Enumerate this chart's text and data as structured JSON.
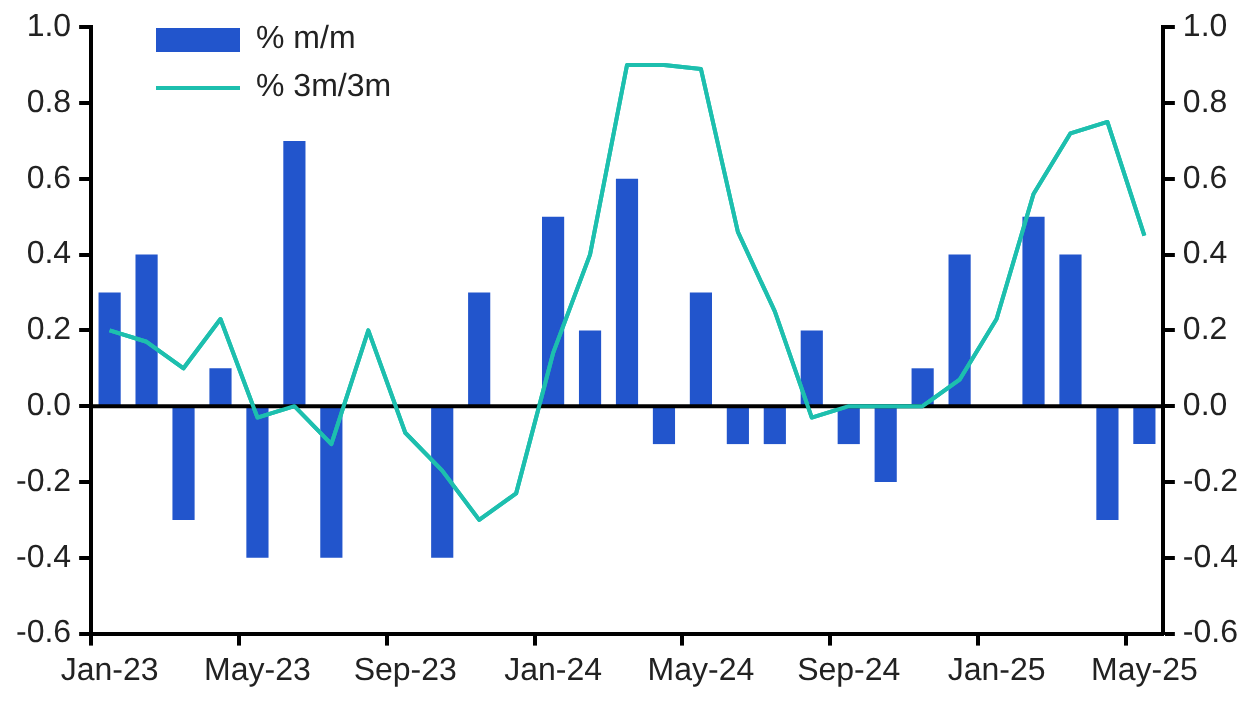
{
  "chart_data": {
    "type": "bar",
    "categories": [
      "Jan-23",
      null,
      null,
      null,
      "May-23",
      null,
      null,
      null,
      "Sep-23",
      null,
      null,
      null,
      "Jan-24",
      null,
      null,
      null,
      "May-24",
      null,
      null,
      null,
      "Sep-24",
      null,
      null,
      null,
      "Jan-25",
      null,
      null,
      null,
      "May-25"
    ],
    "series": [
      {
        "name": "% m/m",
        "color": "#2255cc",
        "values": [
          0.3,
          0.4,
          -0.3,
          0.1,
          -0.4,
          0.7,
          -0.4,
          0,
          0,
          -0.4,
          0.3,
          0,
          0.5,
          0.2,
          0.6,
          -0.1,
          0.3,
          -0.1,
          -0.1,
          0.2,
          -0.1,
          -0.2,
          0.1,
          0.4,
          0,
          0.5,
          0.4,
          -0.3,
          -0.1
        ]
      },
      {
        "name": "% 3m/3m",
        "type": "line",
        "color": "#1dbfae",
        "values": [
          0.2,
          0.17,
          0.1,
          0.23,
          -0.03,
          0,
          -0.1,
          0.2,
          -0.07,
          -0.17,
          -0.3,
          -0.23,
          0.14,
          0.4,
          0.9,
          0.9,
          0.89,
          0.46,
          0.25,
          -0.03,
          0,
          0,
          0,
          0.07,
          0.23,
          0.56,
          0.72,
          0.75,
          0.45
        ]
      }
    ],
    "ylim": [
      -0.6,
      1.0
    ],
    "yticks": [
      -0.6,
      -0.4,
      -0.2,
      {
        "value": 0,
        "label": "0.0"
      },
      0.2,
      0.4,
      0.6,
      0.8,
      {
        "value": 1,
        "label": "1.0"
      }
    ],
    "y2lim": [
      -0.6,
      1.0
    ],
    "y2ticks": [
      -0.6,
      -0.4,
      -0.2,
      {
        "value": 0,
        "label": "0.0"
      },
      0.2,
      0.4,
      0.6,
      0.8,
      {
        "value": 1,
        "label": "1.0"
      }
    ],
    "ref_lines": [
      {
        "axis": "y",
        "value": 0,
        "color": "#000000"
      }
    ],
    "legend": "top left",
    "marker": "none",
    "line_style": "solid"
  }
}
